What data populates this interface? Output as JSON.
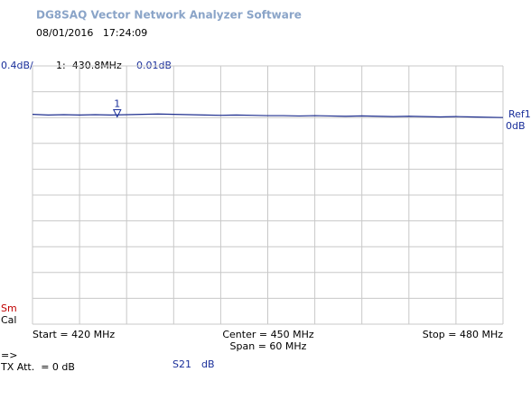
{
  "header": {
    "title": "DG8SAQ Vector Network Analyzer Software",
    "timestamp": "08/01/2016   17:24:09"
  },
  "scale_label": "0.4dB/",
  "marker_readout": {
    "freq": "1:  430.8MHz",
    "value": "0.01dB"
  },
  "ref_label": {
    "name": "Ref1",
    "value": "0dB"
  },
  "side_labels": {
    "smoothing": "Sm",
    "calibration": "Cal"
  },
  "freq_labels": {
    "start": "Start = 420 MHz",
    "center": "Center = 450 MHz",
    "span": "Span = 60 MHz",
    "stop": "Stop = 480 MHz"
  },
  "footer": {
    "arrow": "=>",
    "tx_att": "TX Att.  = 0 dB",
    "param": "S21",
    "unit": "dB"
  },
  "chart_data": {
    "type": "line",
    "x": [
      420,
      422,
      424,
      426,
      428,
      430,
      432,
      434,
      436,
      438,
      440,
      442,
      444,
      446,
      448,
      450,
      452,
      454,
      456,
      458,
      460,
      462,
      464,
      466,
      468,
      470,
      472,
      474,
      476,
      478,
      480
    ],
    "series": [
      {
        "name": "S21",
        "color": "#1f2f8f",
        "values": [
          0.05,
          0.04,
          0.045,
          0.04,
          0.045,
          0.04,
          0.045,
          0.05,
          0.055,
          0.05,
          0.045,
          0.04,
          0.035,
          0.04,
          0.035,
          0.03,
          0.03,
          0.025,
          0.03,
          0.025,
          0.02,
          0.025,
          0.02,
          0.015,
          0.02,
          0.015,
          0.01,
          0.015,
          0.01,
          0.005,
          0.0
        ]
      }
    ],
    "marker": {
      "label": "1",
      "x": 430.8,
      "value": 0.01
    },
    "xlim": [
      420,
      480
    ],
    "xticks": [
      420,
      426,
      432,
      438,
      444,
      450,
      456,
      462,
      468,
      474,
      480
    ],
    "ylim": [
      -3.2,
      0.8
    ],
    "yticks": [
      -3.2,
      -2.8,
      -2.4,
      -2,
      -1.6,
      -1.2,
      -0.8,
      -0.4,
      0,
      0.4,
      0.8
    ],
    "grid": true
  }
}
